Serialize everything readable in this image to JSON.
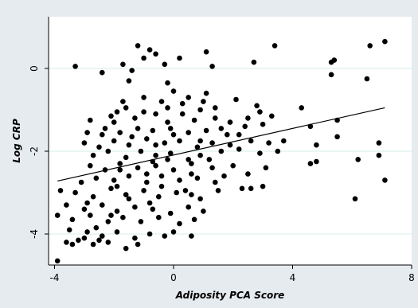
{
  "chart_data": {
    "type": "scatter",
    "xlabel": "Adiposity PCA Score",
    "ylabel": "Log CRP",
    "xlim": [
      -4.2,
      8.0
    ],
    "ylim": [
      -4.75,
      1.25
    ],
    "xticks": [
      -4,
      0,
      4,
      8
    ],
    "yticks": [
      -4,
      -2,
      0
    ],
    "xtick_labels": [
      "-4",
      "0",
      "4",
      "8"
    ],
    "ytick_labels": [
      "-4",
      "-2",
      "0"
    ],
    "grid": "horizontal",
    "colors": {
      "background": "#e6ebf0",
      "plot_area": "#ffffff",
      "grid": "#d4efe8",
      "markers": "#000000",
      "fit_line": "#000000"
    },
    "fit_line": {
      "x": [
        -3.9,
        7.1
      ],
      "y": [
        -2.72,
        -0.95
      ]
    },
    "points": [
      [
        -1.2,
        0.55
      ],
      [
        -0.8,
        0.45
      ],
      [
        -0.6,
        0.35
      ],
      [
        -1.0,
        0.25
      ],
      [
        -0.3,
        0.1
      ],
      [
        -1.7,
        0.1
      ],
      [
        -3.3,
        0.05
      ],
      [
        -2.4,
        -0.1
      ],
      [
        -1.4,
        -0.05
      ],
      [
        0.2,
        0.25
      ],
      [
        1.1,
        0.4
      ],
      [
        1.3,
        0.05
      ],
      [
        2.7,
        0.15
      ],
      [
        3.4,
        0.55
      ],
      [
        5.3,
        0.15
      ],
      [
        5.4,
        0.2
      ],
      [
        6.6,
        0.55
      ],
      [
        7.1,
        0.65
      ],
      [
        5.3,
        -0.15
      ],
      [
        6.5,
        -0.25
      ],
      [
        -1.5,
        -0.3
      ],
      [
        -0.2,
        -0.35
      ],
      [
        0.0,
        -0.55
      ],
      [
        1.1,
        -0.6
      ],
      [
        0.5,
        -0.7
      ],
      [
        -0.4,
        -0.8
      ],
      [
        -0.2,
        -0.95
      ],
      [
        0.3,
        -1.1
      ],
      [
        0.9,
        -1.0
      ],
      [
        1.4,
        -0.95
      ],
      [
        2.1,
        -0.75
      ],
      [
        2.8,
        -0.9
      ],
      [
        3.3,
        -1.15
      ],
      [
        4.3,
        -0.95
      ],
      [
        -1.6,
        -0.95
      ],
      [
        -1.9,
        -1.05
      ],
      [
        -2.1,
        -1.15
      ],
      [
        -1.0,
        -1.05
      ],
      [
        -0.6,
        -1.1
      ],
      [
        -2.8,
        -1.25
      ],
      [
        -2.0,
        -1.3
      ],
      [
        -1.3,
        -1.2
      ],
      [
        -0.2,
        -1.3
      ],
      [
        0.7,
        -1.25
      ],
      [
        1.4,
        -1.2
      ],
      [
        1.9,
        -1.3
      ],
      [
        2.5,
        -1.2
      ],
      [
        2.9,
        -1.05
      ],
      [
        -2.9,
        -1.55
      ],
      [
        -2.4,
        -1.6
      ],
      [
        -1.8,
        -1.55
      ],
      [
        -1.2,
        -1.45
      ],
      [
        -0.7,
        -1.5
      ],
      [
        -0.1,
        -1.45
      ],
      [
        0.5,
        -1.55
      ],
      [
        1.1,
        -1.5
      ],
      [
        1.6,
        -1.45
      ],
      [
        2.4,
        -1.4
      ],
      [
        3.0,
        -1.35
      ],
      [
        4.6,
        -1.4
      ],
      [
        5.5,
        -1.25
      ],
      [
        -3.0,
        -1.8
      ],
      [
        -2.5,
        -1.9
      ],
      [
        -2.0,
        -1.75
      ],
      [
        -1.5,
        -1.85
      ],
      [
        -0.9,
        -1.7
      ],
      [
        -0.3,
        -1.8
      ],
      [
        0.2,
        -1.75
      ],
      [
        0.8,
        -1.9
      ],
      [
        1.3,
        -1.8
      ],
      [
        1.9,
        -1.85
      ],
      [
        2.6,
        -1.75
      ],
      [
        3.2,
        -1.8
      ],
      [
        3.7,
        -1.75
      ],
      [
        4.8,
        -1.85
      ],
      [
        5.5,
        -1.65
      ],
      [
        6.9,
        -1.8
      ],
      [
        -2.7,
        -2.1
      ],
      [
        -2.2,
        -2.0
      ],
      [
        -1.6,
        -2.15
      ],
      [
        -1.1,
        -2.0
      ],
      [
        -0.6,
        -2.1
      ],
      [
        -0.1,
        -2.05
      ],
      [
        0.5,
        -2.2
      ],
      [
        0.9,
        -2.1
      ],
      [
        1.6,
        -2.0
      ],
      [
        2.2,
        -1.95
      ],
      [
        2.9,
        -2.05
      ],
      [
        3.5,
        -2.0
      ],
      [
        4.6,
        -2.3
      ],
      [
        4.8,
        -2.25
      ],
      [
        6.2,
        -2.2
      ],
      [
        6.9,
        -2.1
      ],
      [
        -2.8,
        -2.35
      ],
      [
        -2.3,
        -2.45
      ],
      [
        -1.8,
        -2.3
      ],
      [
        -1.2,
        -2.4
      ],
      [
        -0.6,
        -2.35
      ],
      [
        0.0,
        -2.45
      ],
      [
        0.6,
        -2.3
      ],
      [
        1.3,
        -2.4
      ],
      [
        2.0,
        -2.35
      ],
      [
        3.1,
        -2.4
      ],
      [
        -2.6,
        -2.65
      ],
      [
        -2.0,
        -2.7
      ],
      [
        -1.5,
        -2.6
      ],
      [
        -0.9,
        -2.75
      ],
      [
        -0.4,
        -2.6
      ],
      [
        0.2,
        -2.7
      ],
      [
        0.8,
        -2.65
      ],
      [
        1.4,
        -2.75
      ],
      [
        2.3,
        -2.9
      ],
      [
        2.6,
        -2.9
      ],
      [
        3.0,
        -2.85
      ],
      [
        -3.8,
        -2.95
      ],
      [
        -3.3,
        -3.0
      ],
      [
        -2.7,
        -3.1
      ],
      [
        -2.1,
        -2.9
      ],
      [
        -1.6,
        -3.05
      ],
      [
        -1.0,
        -2.95
      ],
      [
        -0.5,
        -3.1
      ],
      [
        0.1,
        -3.0
      ],
      [
        0.6,
        -3.05
      ],
      [
        1.5,
        -2.95
      ],
      [
        6.1,
        -3.15
      ],
      [
        7.1,
        -2.7
      ],
      [
        -3.6,
        -3.3
      ],
      [
        -3.0,
        -3.4
      ],
      [
        -2.4,
        -3.3
      ],
      [
        -1.9,
        -3.45
      ],
      [
        -1.3,
        -3.35
      ],
      [
        -0.7,
        -3.4
      ],
      [
        -0.1,
        -3.5
      ],
      [
        0.5,
        -3.35
      ],
      [
        1.0,
        -3.45
      ],
      [
        -3.9,
        -3.55
      ],
      [
        -3.4,
        -3.65
      ],
      [
        -2.8,
        -3.55
      ],
      [
        -2.2,
        -3.7
      ],
      [
        -1.7,
        -3.6
      ],
      [
        -1.1,
        -3.7
      ],
      [
        -0.5,
        -3.6
      ],
      [
        0.2,
        -3.75
      ],
      [
        0.7,
        -3.65
      ],
      [
        -3.5,
        -3.9
      ],
      [
        -2.9,
        -3.95
      ],
      [
        -2.4,
        -4.05
      ],
      [
        -1.9,
        -3.95
      ],
      [
        -1.3,
        -4.1
      ],
      [
        -0.8,
        -4.0
      ],
      [
        0.0,
        -3.95
      ],
      [
        0.6,
        -4.05
      ],
      [
        -3.6,
        -4.2
      ],
      [
        -3.2,
        -4.15
      ],
      [
        -2.7,
        -4.25
      ],
      [
        -2.2,
        -4.2
      ],
      [
        -1.6,
        -4.35
      ],
      [
        -1.2,
        -4.25
      ],
      [
        -3.9,
        -4.65
      ],
      [
        -3.0,
        -4.1
      ],
      [
        -2.5,
        -4.15
      ],
      [
        0.9,
        -3.15
      ],
      [
        1.7,
        -2.6
      ],
      [
        -0.2,
        -2.2
      ],
      [
        -1.4,
        -1.65
      ],
      [
        0.3,
        -0.85
      ],
      [
        -0.9,
        -2.55
      ],
      [
        1.8,
        -1.6
      ],
      [
        -1.9,
        -2.85
      ],
      [
        -0.8,
        -3.25
      ],
      [
        -2.3,
        -1.45
      ],
      [
        0.4,
        -2.95
      ],
      [
        1.2,
        -2.2
      ],
      [
        -3.1,
        -2.75
      ],
      [
        -1.0,
        -0.7
      ],
      [
        0.9,
        -1.75
      ],
      [
        -0.4,
        -2.85
      ],
      [
        -2.6,
        -3.85
      ],
      [
        -1.5,
        -3.15
      ],
      [
        2.2,
        -1.6
      ],
      [
        -0.6,
        -1.85
      ],
      [
        0.0,
        -1.6
      ],
      [
        1.0,
        -0.8
      ],
      [
        -1.8,
        -2.45
      ],
      [
        -2.9,
        -3.25
      ],
      [
        -0.3,
        -4.05
      ],
      [
        -3.4,
        -4.25
      ],
      [
        2.5,
        -2.55
      ],
      [
        -1.7,
        -0.8
      ],
      [
        0.6,
        -2.55
      ],
      [
        -2.1,
        -3.55
      ],
      [
        -0.7,
        -2.25
      ]
    ]
  }
}
